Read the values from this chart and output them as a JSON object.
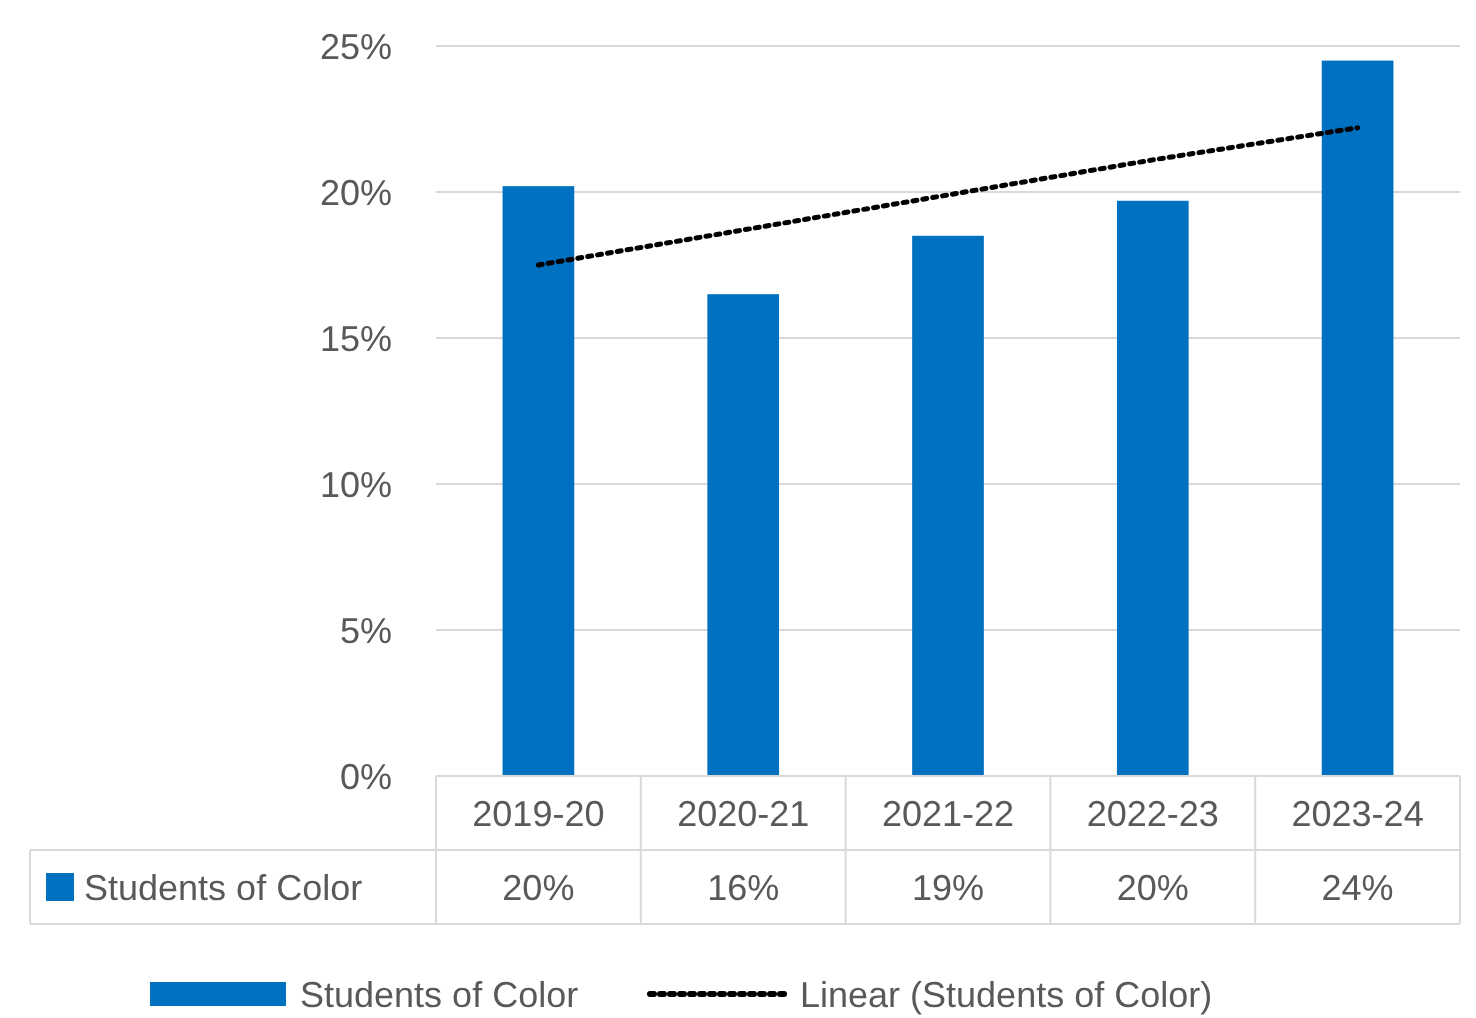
{
  "chart_data": {
    "type": "bar",
    "categories": [
      "2019-20",
      "2020-21",
      "2021-22",
      "2022-23",
      "2023-24"
    ],
    "series": [
      {
        "name": "Students of Color",
        "color": "#0070c0",
        "values": [
          20.2,
          16.5,
          18.5,
          19.7,
          24.5
        ],
        "value_labels": [
          "20%",
          "16%",
          "19%",
          "20%",
          "24%"
        ]
      },
      {
        "name": "Linear (Students of Color)",
        "type": "line",
        "color": "#000000",
        "line_style": "dotted",
        "marker": "none",
        "values": [
          17.5,
          18.7,
          19.9,
          21.1,
          22.2
        ]
      }
    ],
    "ylim": [
      0,
      25
    ],
    "yticks": [
      {
        "value": 0,
        "label": "0%"
      },
      {
        "value": 5,
        "label": "5%"
      },
      {
        "value": 10,
        "label": "10%"
      },
      {
        "value": 15,
        "label": "15%"
      },
      {
        "value": 20,
        "label": "20%"
      },
      {
        "value": 25,
        "label": "25%"
      }
    ],
    "grid": "y",
    "legend": "bottom"
  }
}
